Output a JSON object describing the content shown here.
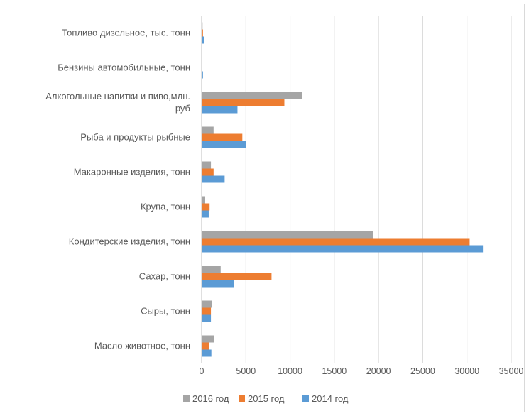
{
  "chart_data": {
    "type": "bar",
    "orientation": "horizontal",
    "categories": [
      "Масло животное, тонн",
      "Сыры, тонн",
      "Сахар, тонн",
      "Кондитерские изделия, тонн",
      "Крупа, тонн",
      "Макаронные изделия, тонн",
      "Рыба и продукты рыбные",
      "Алкогольные напитки и пиво,млн. руб",
      "Бензины автомобильные, тонн",
      "Топливо дизельное, тыс. тонн"
    ],
    "category_lines": [
      [
        "Масло животное, тонн"
      ],
      [
        "Сыры, тонн"
      ],
      [
        "Сахар, тонн"
      ],
      [
        "Кондитерские изделия, тонн"
      ],
      [
        "Крупа, тонн"
      ],
      [
        "Макаронные изделия, тонн"
      ],
      [
        "Рыба и продукты рыбные"
      ],
      [
        "Алкогольные напитки и пиво,млн.",
        "руб"
      ],
      [
        "Бензины автомобильные, тонн"
      ],
      [
        "Топливо дизельное, тыс. тонн"
      ]
    ],
    "series": [
      {
        "name": "2014 год",
        "color": "#5B9BD5",
        "values": [
          1100,
          1050,
          3650,
          31800,
          800,
          2600,
          5000,
          4050,
          150,
          250
        ]
      },
      {
        "name": "2015 год",
        "color": "#ED7D31",
        "values": [
          850,
          1050,
          7900,
          30300,
          900,
          1350,
          4600,
          9350,
          50,
          150
        ]
      },
      {
        "name": "2016 год",
        "color": "#A5A5A5",
        "values": [
          1400,
          1200,
          2150,
          19400,
          400,
          1050,
          1350,
          11350,
          50,
          100
        ]
      }
    ],
    "legend_order": [
      "2016 год",
      "2015 год",
      "2014 год"
    ],
    "xlim": [
      0,
      35000
    ],
    "xticks": [
      "0",
      "5000",
      "10000",
      "15000",
      "20000",
      "25000",
      "30000",
      "35000"
    ],
    "grid": true,
    "legend_position": "bottom",
    "title": "",
    "xlabel": "",
    "ylabel": ""
  }
}
